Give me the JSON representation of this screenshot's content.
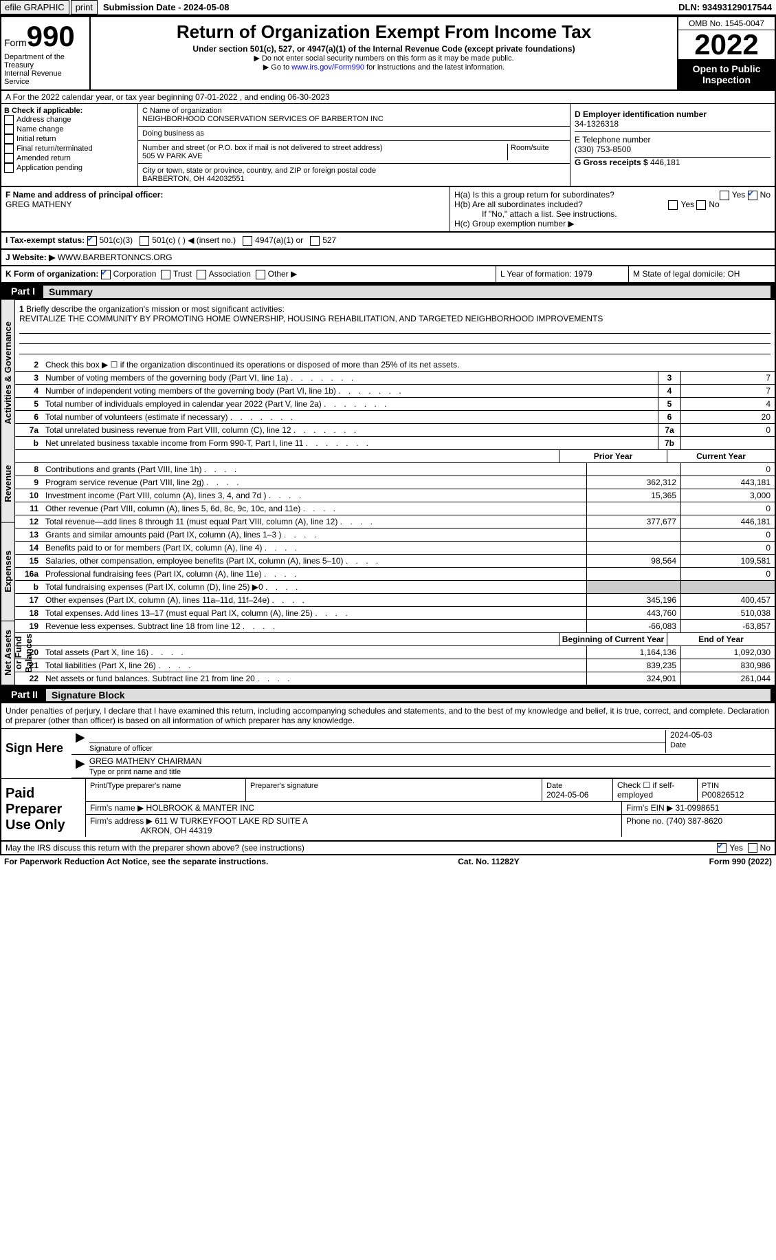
{
  "topbar": {
    "efile": "efile GRAPHIC",
    "print": "print",
    "submission": "Submission Date - 2024-05-08",
    "dln": "DLN: 93493129017544"
  },
  "header": {
    "form": "Form",
    "formnum": "990",
    "dept": "Department of the Treasury\nInternal Revenue Service",
    "title": "Return of Organization Exempt From Income Tax",
    "sub1": "Under section 501(c), 527, or 4947(a)(1) of the Internal Revenue Code (except private foundations)",
    "sub2a": "▶ Do not enter social security numbers on this form as it may be made public.",
    "sub2b": "▶ Go to ",
    "sub2link": "www.irs.gov/Form990",
    "sub2c": " for instructions and the latest information.",
    "omb": "OMB No. 1545-0047",
    "year": "2022",
    "open": "Open to Public Inspection"
  },
  "rowA": "A For the 2022 calendar year, or tax year beginning 07-01-2022   , and ending 06-30-2023",
  "colB": {
    "hdr": "B Check if applicable:",
    "items": [
      "Address change",
      "Name change",
      "Initial return",
      "Final return/terminated",
      "Amended return",
      "Application pending"
    ]
  },
  "colC": {
    "name_label": "C Name of organization",
    "name": "NEIGHBORHOOD CONSERVATION SERVICES OF BARBERTON INC",
    "dba_label": "Doing business as",
    "addr_label": "Number and street (or P.O. box if mail is not delivered to street address)",
    "room_label": "Room/suite",
    "addr": "505 W PARK AVE",
    "city_label": "City or town, state or province, country, and ZIP or foreign postal code",
    "city": "BARBERTON, OH  442032551"
  },
  "colD": {
    "d_label": "D Employer identification number",
    "ein": "34-1326318",
    "e_label": "E Telephone number",
    "phone": "(330) 753-8500",
    "g_label": "G Gross receipts $",
    "gross": "446,181"
  },
  "rowF": {
    "f_label": "F Name and address of principal officer:",
    "f_name": "GREG MATHENY",
    "ha": "H(a)  Is this a group return for subordinates?",
    "hb": "H(b)  Are all subordinates included?",
    "hb_note": "If \"No,\" attach a list. See instructions.",
    "hc": "H(c)  Group exemption number ▶",
    "yes": "Yes",
    "no": "No"
  },
  "rowI": {
    "label": "I   Tax-exempt status:",
    "opt1": "501(c)(3)",
    "opt2": "501(c) (   ) ◀ (insert no.)",
    "opt3": "4947(a)(1) or",
    "opt4": "527"
  },
  "rowJ": {
    "label": "J   Website: ▶",
    "site": "WWW.BARBERTONNCS.ORG"
  },
  "rowK": {
    "label": "K Form of organization:",
    "opts": [
      "Corporation",
      "Trust",
      "Association",
      "Other ▶"
    ],
    "l": "L Year of formation: 1979",
    "m": "M State of legal domicile: OH"
  },
  "part1": {
    "label": "Part I",
    "title": "Summary"
  },
  "summary": {
    "q1": "Briefly describe the organization's mission or most significant activities:",
    "mission": "REVITALIZE THE COMMUNITY BY PROMOTING HOME OWNERSHIP, HOUSING REHABILITATION, AND TARGETED NEIGHBORHOOD IMPROVEMENTS",
    "q2": "Check this box ▶ ☐ if the organization discontinued its operations or disposed of more than 25% of its net assets.",
    "lines": [
      {
        "n": "3",
        "t": "Number of voting members of the governing body (Part VI, line 1a)",
        "c": "3",
        "v": "7"
      },
      {
        "n": "4",
        "t": "Number of independent voting members of the governing body (Part VI, line 1b)",
        "c": "4",
        "v": "7"
      },
      {
        "n": "5",
        "t": "Total number of individuals employed in calendar year 2022 (Part V, line 2a)",
        "c": "5",
        "v": "4"
      },
      {
        "n": "6",
        "t": "Total number of volunteers (estimate if necessary)",
        "c": "6",
        "v": "20"
      },
      {
        "n": "7a",
        "t": "Total unrelated business revenue from Part VIII, column (C), line 12",
        "c": "7a",
        "v": "0"
      },
      {
        "n": "b",
        "t": "Net unrelated business taxable income from Form 990-T, Part I, line 11",
        "c": "7b",
        "v": ""
      }
    ],
    "prior": "Prior Year",
    "current": "Current Year",
    "revenue": [
      {
        "n": "8",
        "t": "Contributions and grants (Part VIII, line 1h)",
        "p": "",
        "c": "0"
      },
      {
        "n": "9",
        "t": "Program service revenue (Part VIII, line 2g)",
        "p": "362,312",
        "c": "443,181"
      },
      {
        "n": "10",
        "t": "Investment income (Part VIII, column (A), lines 3, 4, and 7d )",
        "p": "15,365",
        "c": "3,000"
      },
      {
        "n": "11",
        "t": "Other revenue (Part VIII, column (A), lines 5, 6d, 8c, 9c, 10c, and 11e)",
        "p": "",
        "c": "0"
      },
      {
        "n": "12",
        "t": "Total revenue—add lines 8 through 11 (must equal Part VIII, column (A), line 12)",
        "p": "377,677",
        "c": "446,181"
      }
    ],
    "expenses": [
      {
        "n": "13",
        "t": "Grants and similar amounts paid (Part IX, column (A), lines 1–3 )",
        "p": "",
        "c": "0"
      },
      {
        "n": "14",
        "t": "Benefits paid to or for members (Part IX, column (A), line 4)",
        "p": "",
        "c": "0"
      },
      {
        "n": "15",
        "t": "Salaries, other compensation, employee benefits (Part IX, column (A), lines 5–10)",
        "p": "98,564",
        "c": "109,581"
      },
      {
        "n": "16a",
        "t": "Professional fundraising fees (Part IX, column (A), line 11e)",
        "p": "",
        "c": "0"
      },
      {
        "n": "b",
        "t": "Total fundraising expenses (Part IX, column (D), line 25) ▶0",
        "p": "GRAY",
        "c": "GRAY"
      },
      {
        "n": "17",
        "t": "Other expenses (Part IX, column (A), lines 11a–11d, 11f–24e)",
        "p": "345,196",
        "c": "400,457"
      },
      {
        "n": "18",
        "t": "Total expenses. Add lines 13–17 (must equal Part IX, column (A), line 25)",
        "p": "443,760",
        "c": "510,038"
      },
      {
        "n": "19",
        "t": "Revenue less expenses. Subtract line 18 from line 12",
        "p": "-66,083",
        "c": "-63,857"
      }
    ],
    "beg": "Beginning of Current Year",
    "end": "End of Year",
    "netassets": [
      {
        "n": "20",
        "t": "Total assets (Part X, line 16)",
        "p": "1,164,136",
        "c": "1,092,030"
      },
      {
        "n": "21",
        "t": "Total liabilities (Part X, line 26)",
        "p": "839,235",
        "c": "830,986"
      },
      {
        "n": "22",
        "t": "Net assets or fund balances. Subtract line 21 from line 20",
        "p": "324,901",
        "c": "261,044"
      }
    ],
    "tab1": "Activities & Governance",
    "tab2": "Revenue",
    "tab3": "Expenses",
    "tab4": "Net Assets or Fund Balances"
  },
  "part2": {
    "label": "Part II",
    "title": "Signature Block"
  },
  "sig": {
    "penalty": "Under penalties of perjury, I declare that I have examined this return, including accompanying schedules and statements, and to the best of my knowledge and belief, it is true, correct, and complete. Declaration of preparer (other than officer) is based on all information of which preparer has any knowledge.",
    "signhere": "Sign Here",
    "sigoff": "Signature of officer",
    "date1": "2024-05-03",
    "datelabel": "Date",
    "printed": "GREG MATHENY CHAIRMAN",
    "printed_label": "Type or print name and title",
    "paid": "Paid Preparer Use Only",
    "pname_label": "Print/Type preparer's name",
    "psig_label": "Preparer's signature",
    "pdate": "2024-05-06",
    "checkif": "Check ☐ if self-employed",
    "ptin_label": "PTIN",
    "ptin": "P00826512",
    "firm_label": "Firm's name    ▶",
    "firm": "HOLBROOK & MANTER INC",
    "firmein_label": "Firm's EIN ▶",
    "firmein": "31-0998651",
    "firmaddr_label": "Firm's address ▶",
    "firmaddr1": "611 W TURKEYFOOT LAKE RD SUITE A",
    "firmaddr2": "AKRON, OH  44319",
    "phone_label": "Phone no.",
    "phone": "(740) 387-8620",
    "may": "May the IRS discuss this return with the preparer shown above? (see instructions)",
    "yes": "Yes",
    "no": "No"
  },
  "footer": {
    "pra": "For Paperwork Reduction Act Notice, see the separate instructions.",
    "cat": "Cat. No. 11282Y",
    "form": "Form 990 (2022)"
  }
}
